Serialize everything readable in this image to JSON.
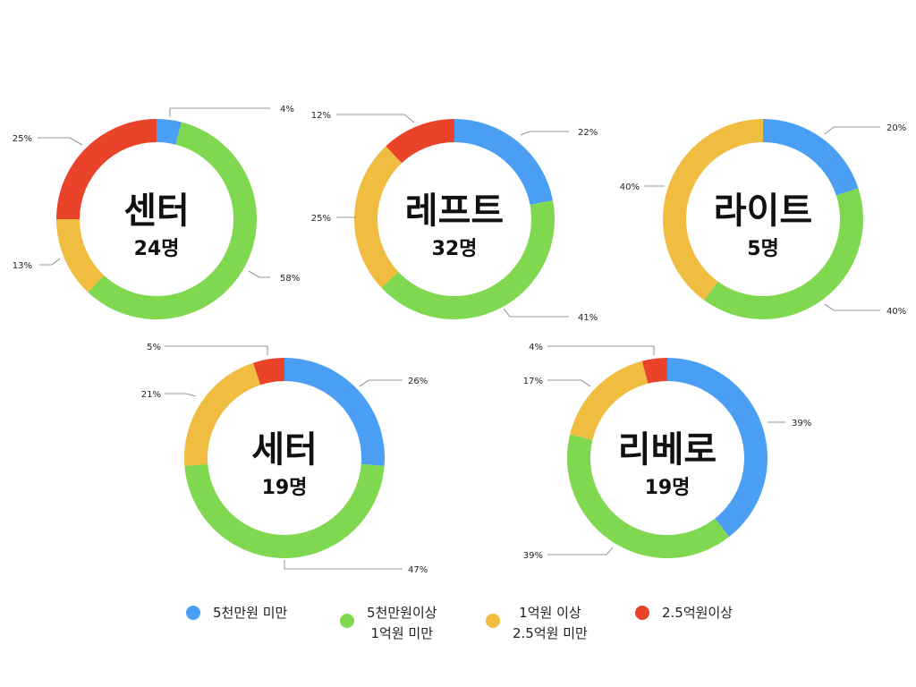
{
  "colors": {
    "series": [
      "#4a9ff5",
      "#80d850",
      "#f0bd41",
      "#e9432a"
    ],
    "ring_inner": "#ffffff",
    "leader": "#777777"
  },
  "legend": [
    {
      "line1": "5천만원 미만",
      "line2": ""
    },
    {
      "line1": "5천만원이상",
      "line2": "1억원 미만"
    },
    {
      "line1": "1억원 이상",
      "line2": "2.5억원 미만"
    },
    {
      "line1": "2.5억원이상",
      "line2": ""
    }
  ],
  "chart_data": [
    {
      "type": "pie",
      "title": "센터",
      "count_label": "24명",
      "values": [
        4,
        58,
        13,
        25
      ],
      "labels": [
        "4%",
        "58%",
        "13%",
        "25%"
      ]
    },
    {
      "type": "pie",
      "title": "레프트",
      "count_label": "32명",
      "values": [
        22,
        41,
        25,
        12
      ],
      "labels": [
        "22%",
        "41%",
        "25%",
        "12%"
      ]
    },
    {
      "type": "pie",
      "title": "라이트",
      "count_label": "5명",
      "values": [
        20,
        40,
        40,
        0
      ],
      "labels": [
        "20%",
        "40%",
        "40%",
        ""
      ]
    },
    {
      "type": "pie",
      "title": "세터",
      "count_label": "19명",
      "values": [
        26,
        47,
        21,
        5
      ],
      "labels": [
        "26%",
        "47%",
        "21%",
        "5%"
      ]
    },
    {
      "type": "pie",
      "title": "리베로",
      "count_label": "19명",
      "values": [
        39,
        39,
        17,
        4
      ],
      "labels": [
        "39%",
        "39%",
        "17%",
        "4%"
      ]
    }
  ]
}
